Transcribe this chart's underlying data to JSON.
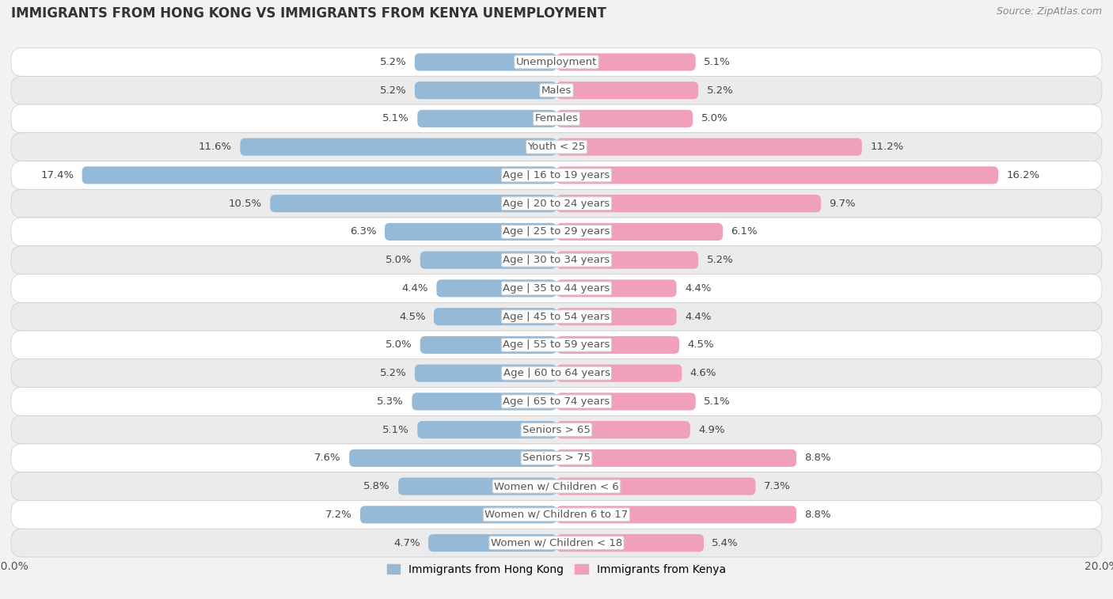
{
  "title": "IMMIGRANTS FROM HONG KONG VS IMMIGRANTS FROM KENYA UNEMPLOYMENT",
  "source": "Source: ZipAtlas.com",
  "categories": [
    "Unemployment",
    "Males",
    "Females",
    "Youth < 25",
    "Age | 16 to 19 years",
    "Age | 20 to 24 years",
    "Age | 25 to 29 years",
    "Age | 30 to 34 years",
    "Age | 35 to 44 years",
    "Age | 45 to 54 years",
    "Age | 55 to 59 years",
    "Age | 60 to 64 years",
    "Age | 65 to 74 years",
    "Seniors > 65",
    "Seniors > 75",
    "Women w/ Children < 6",
    "Women w/ Children 6 to 17",
    "Women w/ Children < 18"
  ],
  "hong_kong": [
    5.2,
    5.2,
    5.1,
    11.6,
    17.4,
    10.5,
    6.3,
    5.0,
    4.4,
    4.5,
    5.0,
    5.2,
    5.3,
    5.1,
    7.6,
    5.8,
    7.2,
    4.7
  ],
  "kenya": [
    5.1,
    5.2,
    5.0,
    11.2,
    16.2,
    9.7,
    6.1,
    5.2,
    4.4,
    4.4,
    4.5,
    4.6,
    5.1,
    4.9,
    8.8,
    7.3,
    8.8,
    5.4
  ],
  "hk_color": "#94bad8",
  "kenya_color": "#f0a0bc",
  "bar_height": 0.62,
  "xlim": 20.0,
  "bg_color": "#f2f2f2",
  "row_color_even": "#ffffff",
  "row_color_odd": "#ebebeb",
  "legend_hk": "Immigrants from Hong Kong",
  "legend_kenya": "Immigrants from Kenya",
  "label_fontsize": 9.5,
  "title_fontsize": 12,
  "source_fontsize": 9
}
